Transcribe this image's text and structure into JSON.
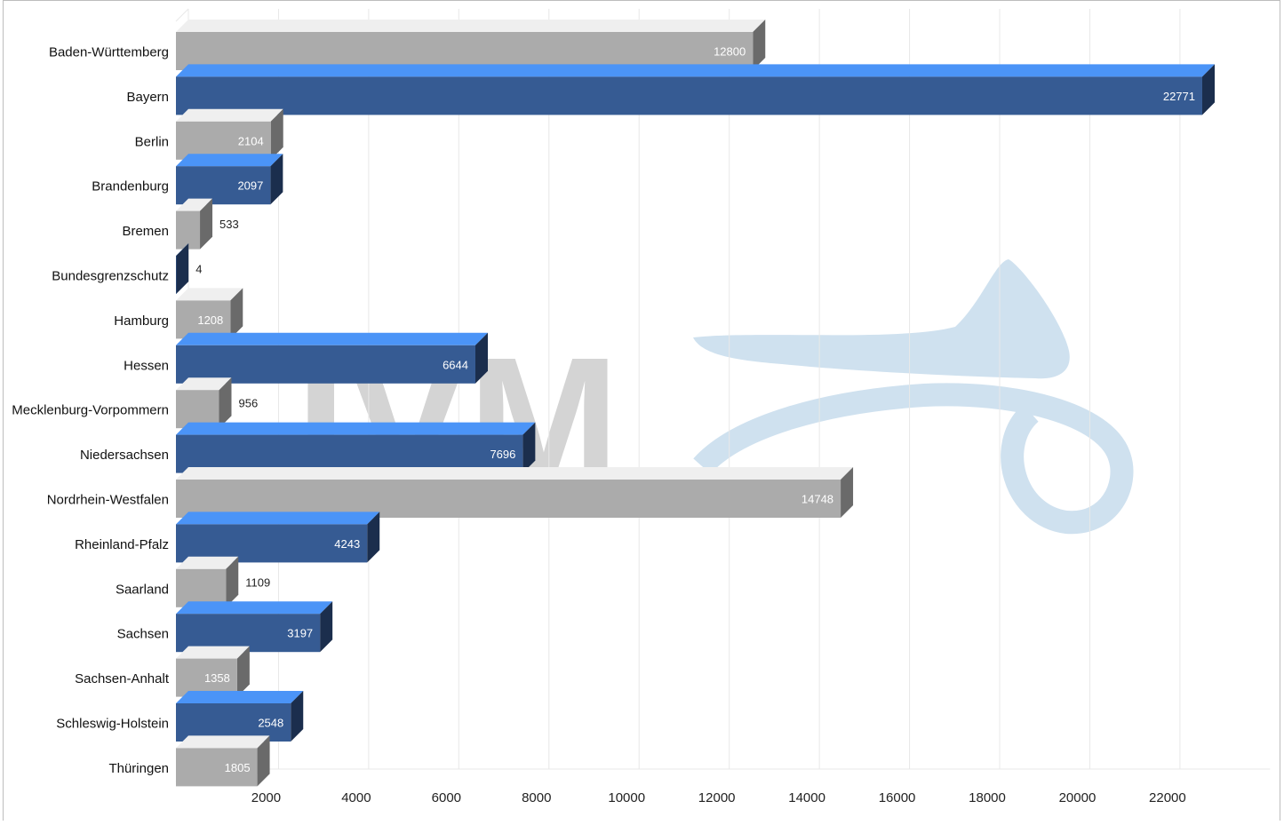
{
  "chart_data": {
    "type": "bar",
    "orientation": "horizontal",
    "style": "3d",
    "title": "",
    "xlabel": "",
    "ylabel": "",
    "xlim": [
      0,
      24000
    ],
    "x_ticks": [
      2000,
      4000,
      6000,
      8000,
      10000,
      12000,
      14000,
      16000,
      18000,
      20000,
      22000
    ],
    "grid": true,
    "legend": "none",
    "categories": [
      "Baden-Württemberg",
      "Bayern",
      "Berlin",
      "Brandenburg",
      "Bremen",
      "Bundesgrenzschutz",
      "Hamburg",
      "Hessen",
      "Mecklenburg-Vorpommern",
      "Niedersachsen",
      "Nordrhein-Westfalen",
      "Rheinland-Pfalz",
      "Saarland",
      "Sachsen",
      "Sachsen-Anhalt",
      "Schleswig-Holstein",
      "Thüringen"
    ],
    "values": [
      12800,
      22771,
      2104,
      2097,
      533,
      4,
      1208,
      6644,
      956,
      7696,
      14748,
      4243,
      1109,
      3197,
      1358,
      2548,
      1805
    ],
    "colors": {
      "gray_front": "#ababab",
      "gray_top": "#efefef",
      "gray_side": "#6a6a6a",
      "blue_front": "#365b93",
      "blue_top": "#4b94f7",
      "blue_side": "#1b2e4d",
      "grid": "#e8e8e8",
      "watermark_logo": "#cfe1ef",
      "watermark_text": "#d4d4d4"
    },
    "watermark": "IVM"
  }
}
